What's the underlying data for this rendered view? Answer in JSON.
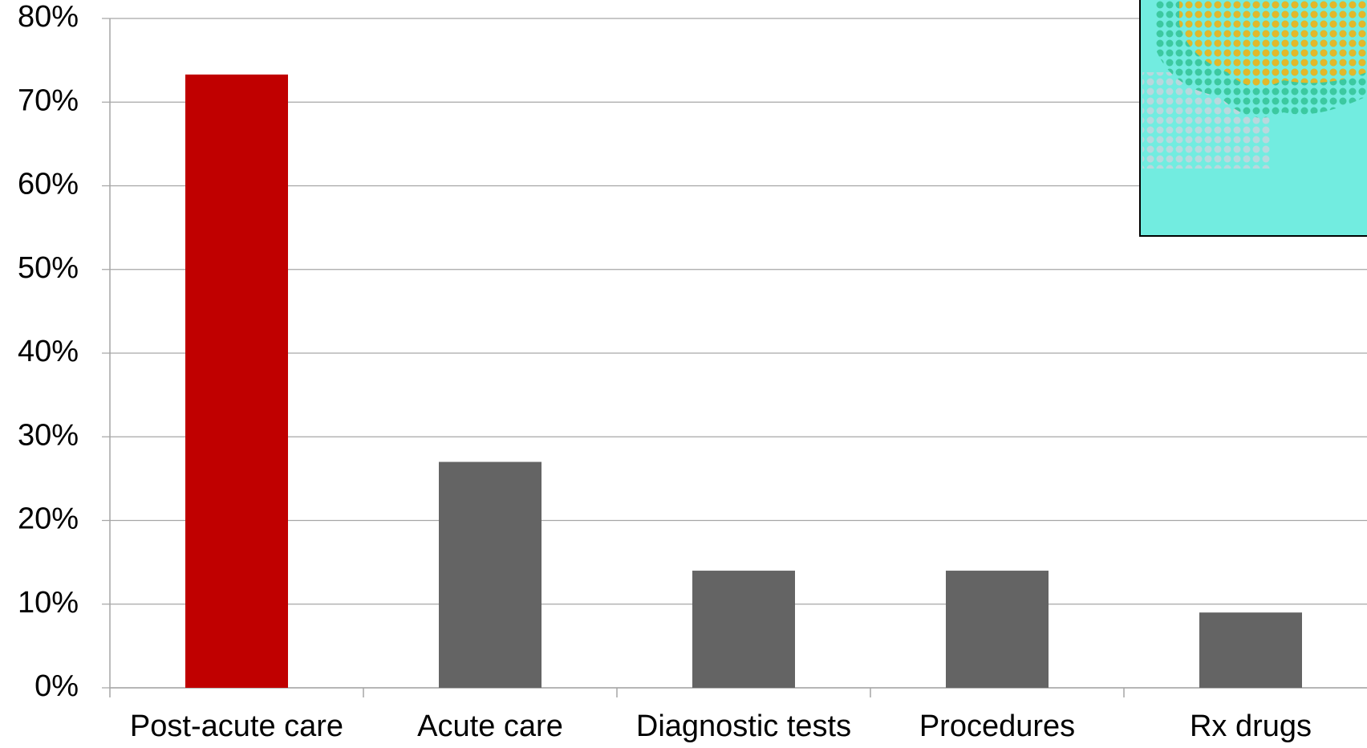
{
  "chart_data": {
    "type": "bar",
    "categories": [
      "Post-acute care",
      "Acute care",
      "Diagnostic tests",
      "Procedures",
      "Rx drugs"
    ],
    "values": [
      73.3,
      27,
      14,
      14,
      9
    ],
    "colors": [
      "#c00000",
      "#646464",
      "#646464",
      "#646464",
      "#646464"
    ],
    "ylim": [
      0,
      80
    ],
    "yticks": [
      {
        "value": 0,
        "label": "0%"
      },
      {
        "value": 10,
        "label": "10%"
      },
      {
        "value": 20,
        "label": "20%"
      },
      {
        "value": 30,
        "label": "30%"
      },
      {
        "value": 40,
        "label": "40%"
      },
      {
        "value": 50,
        "label": "50%"
      },
      {
        "value": 60,
        "label": "60%"
      },
      {
        "value": 70,
        "label": "70%"
      },
      {
        "value": 80,
        "label": "80%"
      }
    ],
    "grid": true
  }
}
